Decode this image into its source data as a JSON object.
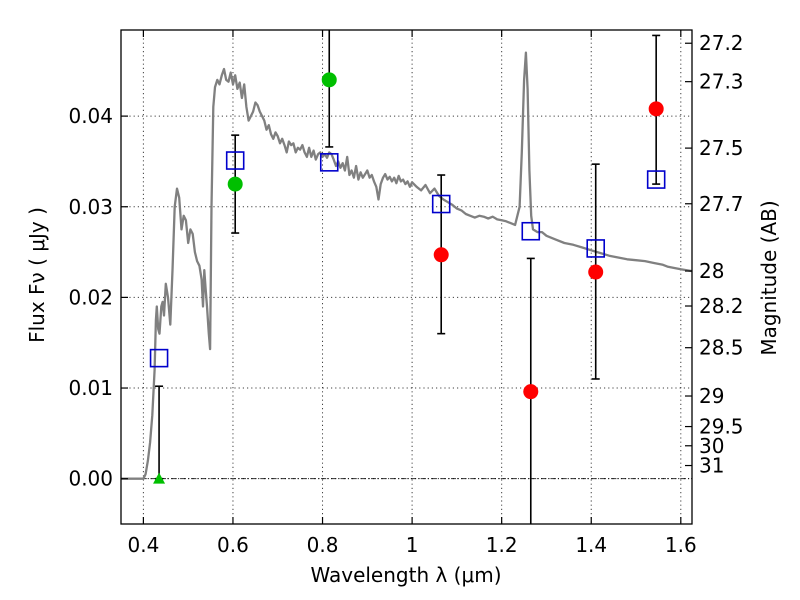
{
  "chart_data": {
    "type": "scatter",
    "title": "",
    "xlabel": "Wavelength  λ (μm)",
    "ylabel": "Flux  Fν  ( μJy )",
    "ylabel_right": "Magnitude (AB)",
    "xlim": [
      0.35,
      1.625
    ],
    "ylim": [
      -0.005,
      0.0495
    ],
    "grid": true,
    "legend": "none",
    "xticks": [
      0.4,
      0.6,
      0.8,
      1.0,
      1.2,
      1.4,
      1.6
    ],
    "xtick_labels": [
      "0.4",
      "0.6",
      "0.8",
      "1",
      "1.2",
      "1.4",
      "1.6"
    ],
    "yticks": [
      0.0,
      0.01,
      0.02,
      0.03,
      0.04
    ],
    "ytick_labels": [
      "0.00",
      "0.01",
      "0.02",
      "0.03",
      "0.04"
    ],
    "right_ticks": [
      {
        "flux": 0.04804,
        "label": "27.2"
      },
      {
        "flux": 0.0438,
        "label": "27.3"
      },
      {
        "flux": 0.03647,
        "label": "27.5"
      },
      {
        "flux": 0.03033,
        "label": "27.7"
      },
      {
        "flux": 0.02291,
        "label": "28"
      },
      {
        "flux": 0.01905,
        "label": "28.2"
      },
      {
        "flux": 0.01445,
        "label": "28.5"
      },
      {
        "flux": 0.00912,
        "label": "29"
      },
      {
        "flux": 0.00575,
        "label": "29.5"
      },
      {
        "flux": 0.00363,
        "label": "30"
      },
      {
        "flux": 0.00145,
        "label": "31"
      }
    ],
    "series": [
      {
        "kind": "line",
        "color": "#808080",
        "points": [
          [
            0.35,
            0.0
          ],
          [
            0.4,
            0.0
          ],
          [
            0.405,
            0.0005
          ],
          [
            0.41,
            0.002
          ],
          [
            0.415,
            0.004
          ],
          [
            0.42,
            0.007
          ],
          [
            0.425,
            0.012
          ],
          [
            0.428,
            0.0175
          ],
          [
            0.43,
            0.019
          ],
          [
            0.433,
            0.0165
          ],
          [
            0.436,
            0.016
          ],
          [
            0.44,
            0.019
          ],
          [
            0.443,
            0.0195
          ],
          [
            0.446,
            0.018
          ],
          [
            0.45,
            0.0215
          ],
          [
            0.455,
            0.02
          ],
          [
            0.46,
            0.017
          ],
          [
            0.465,
            0.023
          ],
          [
            0.47,
            0.03
          ],
          [
            0.475,
            0.032
          ],
          [
            0.48,
            0.031
          ],
          [
            0.485,
            0.0275
          ],
          [
            0.49,
            0.029
          ],
          [
            0.495,
            0.0285
          ],
          [
            0.5,
            0.026
          ],
          [
            0.505,
            0.0275
          ],
          [
            0.51,
            0.027
          ],
          [
            0.515,
            0.025
          ],
          [
            0.52,
            0.024
          ],
          [
            0.525,
            0.0235
          ],
          [
            0.53,
            0.022
          ],
          [
            0.533,
            0.019
          ],
          [
            0.536,
            0.023
          ],
          [
            0.539,
            0.021
          ],
          [
            0.542,
            0.019
          ],
          [
            0.546,
            0.016
          ],
          [
            0.549,
            0.0143
          ],
          [
            0.552,
            0.03
          ],
          [
            0.556,
            0.041
          ],
          [
            0.56,
            0.0432
          ],
          [
            0.565,
            0.044
          ],
          [
            0.57,
            0.0435
          ],
          [
            0.575,
            0.0445
          ],
          [
            0.58,
            0.0452
          ],
          [
            0.585,
            0.044
          ],
          [
            0.59,
            0.0438
          ],
          [
            0.595,
            0.0448
          ],
          [
            0.6,
            0.0435
          ],
          [
            0.605,
            0.0445
          ],
          [
            0.61,
            0.043
          ],
          [
            0.615,
            0.0437
          ],
          [
            0.62,
            0.042
          ],
          [
            0.625,
            0.0435
          ],
          [
            0.63,
            0.041
          ],
          [
            0.635,
            0.0395
          ],
          [
            0.64,
            0.04
          ],
          [
            0.645,
            0.0405
          ],
          [
            0.65,
            0.0415
          ],
          [
            0.655,
            0.0412
          ],
          [
            0.66,
            0.0405
          ],
          [
            0.665,
            0.04
          ],
          [
            0.67,
            0.0395
          ],
          [
            0.675,
            0.0385
          ],
          [
            0.68,
            0.039
          ],
          [
            0.685,
            0.038
          ],
          [
            0.69,
            0.0375
          ],
          [
            0.695,
            0.0382
          ],
          [
            0.7,
            0.0378
          ],
          [
            0.705,
            0.037
          ],
          [
            0.71,
            0.0375
          ],
          [
            0.715,
            0.0368
          ],
          [
            0.72,
            0.036
          ],
          [
            0.725,
            0.0372
          ],
          [
            0.73,
            0.0368
          ],
          [
            0.735,
            0.037
          ],
          [
            0.74,
            0.036
          ],
          [
            0.745,
            0.0365
          ],
          [
            0.75,
            0.0363
          ],
          [
            0.755,
            0.0368
          ],
          [
            0.76,
            0.036
          ],
          [
            0.765,
            0.0355
          ],
          [
            0.77,
            0.0365
          ],
          [
            0.775,
            0.0355
          ],
          [
            0.78,
            0.0362
          ],
          [
            0.785,
            0.0352
          ],
          [
            0.79,
            0.0358
          ],
          [
            0.795,
            0.036
          ],
          [
            0.8,
            0.0355
          ],
          [
            0.805,
            0.0358
          ],
          [
            0.81,
            0.0354
          ],
          [
            0.815,
            0.036
          ],
          [
            0.82,
            0.0358
          ],
          [
            0.825,
            0.0352
          ],
          [
            0.83,
            0.0345
          ],
          [
            0.835,
            0.035
          ],
          [
            0.84,
            0.0343
          ],
          [
            0.845,
            0.0348
          ],
          [
            0.85,
            0.034
          ],
          [
            0.855,
            0.0355
          ],
          [
            0.86,
            0.0335
          ],
          [
            0.865,
            0.034
          ],
          [
            0.87,
            0.0332
          ],
          [
            0.875,
            0.0345
          ],
          [
            0.88,
            0.033
          ],
          [
            0.885,
            0.0338
          ],
          [
            0.89,
            0.0332
          ],
          [
            0.895,
            0.0336
          ],
          [
            0.9,
            0.034
          ],
          [
            0.905,
            0.0332
          ],
          [
            0.91,
            0.0335
          ],
          [
            0.915,
            0.0328
          ],
          [
            0.92,
            0.0322
          ],
          [
            0.925,
            0.0308
          ],
          [
            0.93,
            0.0325
          ],
          [
            0.935,
            0.0332
          ],
          [
            0.94,
            0.0336
          ],
          [
            0.945,
            0.033
          ],
          [
            0.95,
            0.0333
          ],
          [
            0.955,
            0.0328
          ],
          [
            0.96,
            0.0332
          ],
          [
            0.965,
            0.0326
          ],
          [
            0.97,
            0.0334
          ],
          [
            0.975,
            0.0328
          ],
          [
            0.98,
            0.033
          ],
          [
            0.985,
            0.0325
          ],
          [
            0.99,
            0.0328
          ],
          [
            0.995,
            0.0322
          ],
          [
            1.0,
            0.0327
          ],
          [
            1.01,
            0.0322
          ],
          [
            1.02,
            0.0318
          ],
          [
            1.03,
            0.0324
          ],
          [
            1.04,
            0.0315
          ],
          [
            1.05,
            0.032
          ],
          [
            1.06,
            0.0312
          ],
          [
            1.07,
            0.0308
          ],
          [
            1.08,
            0.0305
          ],
          [
            1.09,
            0.0302
          ],
          [
            1.1,
            0.0298
          ],
          [
            1.11,
            0.0296
          ],
          [
            1.12,
            0.0292
          ],
          [
            1.13,
            0.029
          ],
          [
            1.14,
            0.0288
          ],
          [
            1.15,
            0.029
          ],
          [
            1.16,
            0.0289
          ],
          [
            1.17,
            0.0287
          ],
          [
            1.18,
            0.0289
          ],
          [
            1.19,
            0.0286
          ],
          [
            1.2,
            0.0285
          ],
          [
            1.21,
            0.0284
          ],
          [
            1.22,
            0.0282
          ],
          [
            1.23,
            0.028
          ],
          [
            1.24,
            0.03
          ],
          [
            1.245,
            0.036
          ],
          [
            1.25,
            0.044
          ],
          [
            1.254,
            0.047
          ],
          [
            1.258,
            0.043
          ],
          [
            1.262,
            0.034
          ],
          [
            1.266,
            0.029
          ],
          [
            1.27,
            0.0275
          ],
          [
            1.28,
            0.0272
          ],
          [
            1.29,
            0.0272
          ],
          [
            1.3,
            0.0268
          ],
          [
            1.32,
            0.0264
          ],
          [
            1.34,
            0.026
          ],
          [
            1.36,
            0.0258
          ],
          [
            1.38,
            0.0255
          ],
          [
            1.4,
            0.0252
          ],
          [
            1.42,
            0.0249
          ],
          [
            1.44,
            0.0246
          ],
          [
            1.46,
            0.0244
          ],
          [
            1.48,
            0.0242
          ],
          [
            1.5,
            0.0241
          ],
          [
            1.52,
            0.024
          ],
          [
            1.54,
            0.0238
          ],
          [
            1.55,
            0.0237
          ],
          [
            1.56,
            0.0236
          ],
          [
            1.57,
            0.0234
          ],
          [
            1.58,
            0.0233
          ],
          [
            1.6,
            0.0231
          ],
          [
            1.625,
            0.0229
          ]
        ]
      },
      {
        "kind": "square",
        "color": "#0000cc",
        "x": [
          0.435,
          0.605,
          0.815,
          1.065,
          1.265,
          1.41,
          1.545
        ],
        "y": [
          0.0133,
          0.0351,
          0.0349,
          0.0303,
          0.0273,
          0.0254,
          0.033
        ]
      },
      {
        "kind": "circle",
        "color": "#00bf00",
        "x": [
          0.605,
          0.815
        ],
        "y": [
          0.0325,
          0.044
        ]
      },
      {
        "kind": "circle",
        "color": "#ff0000",
        "x": [
          1.065,
          1.265,
          1.41,
          1.545
        ],
        "y": [
          0.0247,
          0.0096,
          0.0228,
          0.0408
        ]
      },
      {
        "kind": "triangle",
        "color": "#00bf00",
        "x": [
          0.435
        ],
        "y": [
          0.0
        ]
      }
    ],
    "errorbars": [
      {
        "x": 0.435,
        "low": 0.0,
        "high": 0.0102
      },
      {
        "x": 0.605,
        "low": 0.0271,
        "high": 0.0379
      },
      {
        "x": 0.815,
        "low": 0.0366,
        "high": 0.0495
      },
      {
        "x": 1.065,
        "low": 0.016,
        "high": 0.0335
      },
      {
        "x": 1.265,
        "low": -0.005,
        "high": 0.0243
      },
      {
        "x": 1.41,
        "low": 0.011,
        "high": 0.0347
      },
      {
        "x": 1.545,
        "low": 0.0325,
        "high": 0.0489
      }
    ]
  }
}
